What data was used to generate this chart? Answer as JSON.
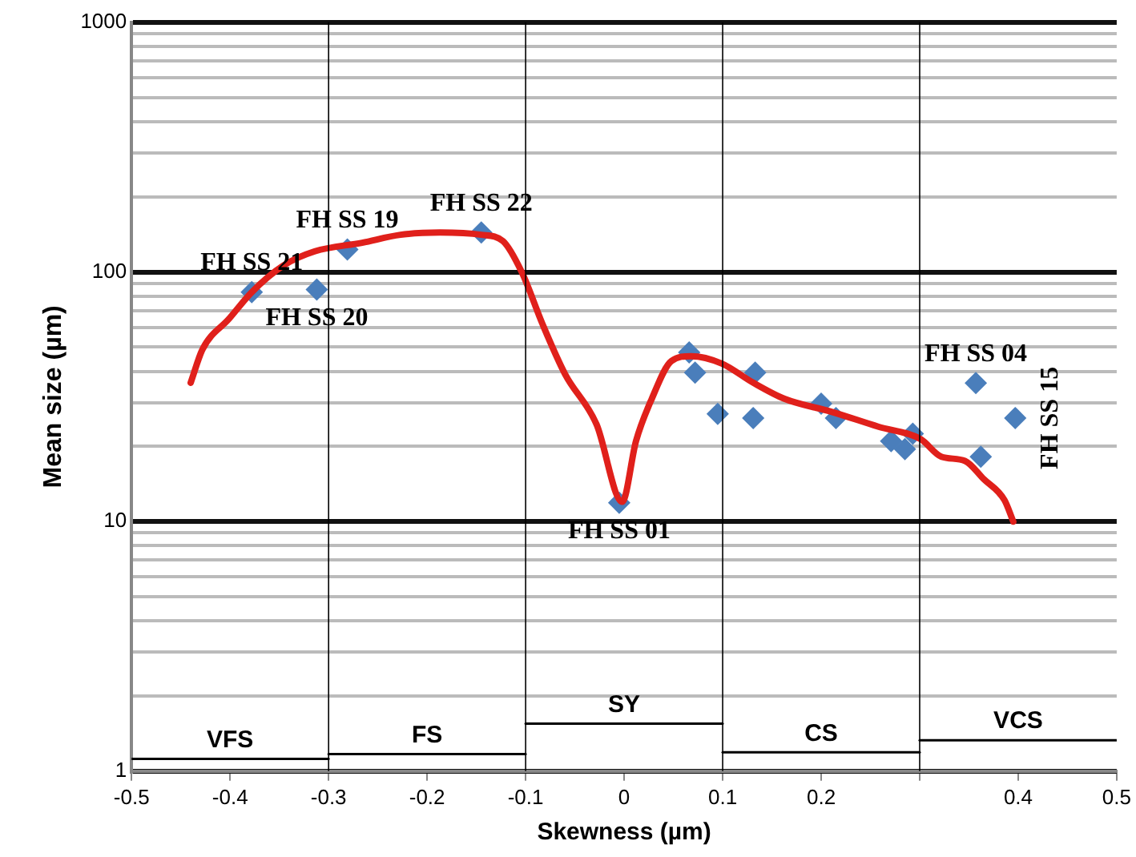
{
  "chart_data": {
    "type": "scatter",
    "xlabel": "Skewness (µm)",
    "ylabel": "Mean size (µm)",
    "log": "y",
    "grid": "y",
    "legend": false,
    "xlim": [
      -0.5,
      0.5
    ],
    "xticks": [
      -0.5,
      -0.4,
      -0.3,
      -0.2,
      -0.1,
      0,
      0.1,
      0.2,
      {
        "value": 0.3,
        "label": null
      },
      0.4,
      0.5
    ],
    "ylim": [
      1,
      1000
    ],
    "yticks": [
      1,
      {
        "value": 2,
        "label": null
      },
      {
        "value": 3,
        "label": null
      },
      {
        "value": 4,
        "label": null
      },
      {
        "value": 5,
        "label": null
      },
      {
        "value": 6,
        "label": null
      },
      {
        "value": 7,
        "label": null
      },
      {
        "value": 8,
        "label": null
      },
      {
        "value": 9,
        "label": null
      },
      10,
      {
        "value": 20,
        "label": null
      },
      {
        "value": 30,
        "label": null
      },
      {
        "value": 40,
        "label": null
      },
      {
        "value": 50,
        "label": null
      },
      {
        "value": 60,
        "label": null
      },
      {
        "value": 70,
        "label": null
      },
      {
        "value": 80,
        "label": null
      },
      {
        "value": 90,
        "label": null
      },
      100,
      {
        "value": 200,
        "label": null
      },
      {
        "value": 300,
        "label": null
      },
      {
        "value": 400,
        "label": null
      },
      {
        "value": 500,
        "label": null
      },
      {
        "value": 600,
        "label": null
      },
      {
        "value": 700,
        "label": null
      },
      {
        "value": 800,
        "label": null
      },
      {
        "value": 900,
        "label": null
      },
      1000
    ],
    "series": [
      {
        "type": "line",
        "color": "#e0201b",
        "marker": "none",
        "x": [
          -0.44,
          -0.428,
          -0.401,
          -0.378,
          -0.346,
          -0.314,
          -0.266,
          -0.227,
          -0.187,
          -0.145,
          -0.123,
          -0.104,
          -0.083,
          -0.06,
          -0.028,
          -0.002,
          0.012,
          0.028,
          0.048,
          0.068,
          0.099,
          0.131,
          0.163,
          0.211,
          0.258,
          0.301,
          0.322,
          0.346,
          0.365,
          0.386,
          0.395
        ],
        "values": [
          36,
          49,
          65,
          83,
          106,
          121,
          131,
          141,
          144,
          141,
          133,
          100,
          62,
          39,
          24.5,
          12,
          21,
          31,
          44,
          46,
          43,
          36,
          31,
          27.5,
          24,
          21.4,
          18.2,
          17.5,
          14.8,
          12.2,
          10
        ]
      },
      {
        "color": "#4a7ebb",
        "marker": "diamond",
        "x": [
          -0.378,
          -0.312,
          -0.281,
          -0.145,
          -0.005,
          0.066,
          0.072,
          0.095,
          0.133,
          0.131,
          0.2,
          0.215,
          0.271,
          0.285,
          0.293,
          0.357,
          0.362,
          0.397
        ],
        "values": [
          83,
          85,
          123,
          144,
          11.9,
          47.6,
          39.5,
          27,
          39.5,
          26,
          29.7,
          26,
          21,
          19.5,
          22.5,
          35.9,
          18.2,
          26
        ]
      },
      {
        "type": "line",
        "name": "VFS",
        "color": "#000000",
        "marker": "none",
        "x": [
          -0.5,
          -0.3
        ],
        "values": [
          1.12,
          1.12
        ]
      },
      {
        "type": "line",
        "name": "FS",
        "color": "#000000",
        "marker": "none",
        "x": [
          -0.3,
          -0.1
        ],
        "values": [
          1.17,
          1.17
        ]
      },
      {
        "type": "line",
        "name": "SY",
        "color": "#000000",
        "marker": "none",
        "x": [
          -0.1,
          0.1
        ],
        "values": [
          1.55,
          1.55
        ]
      },
      {
        "type": "line",
        "name": "CS",
        "color": "#000000",
        "marker": "none",
        "x": [
          0.1,
          0.3
        ],
        "values": [
          1.19,
          1.19
        ]
      },
      {
        "type": "line",
        "name": "VCS",
        "color": "#000000",
        "marker": "none",
        "x": [
          0.3,
          0.5
        ],
        "values": [
          1.33,
          1.33
        ]
      }
    ],
    "ref_lines": [
      {
        "axis": "x",
        "value": -0.3
      },
      {
        "axis": "x",
        "value": -0.1
      },
      {
        "axis": "x",
        "value": 0.1
      },
      {
        "axis": "x",
        "value": 0.3
      }
    ],
    "annotations": [
      {
        "text": "FH SS 21",
        "x": -0.378,
        "y": 83
      },
      {
        "text": "FH SS 19",
        "x": -0.281,
        "y": 123
      },
      {
        "text": "FH SS 22",
        "x": -0.145,
        "y": 144
      },
      {
        "text": "FH SS 20",
        "x": -0.312,
        "y": 85
      },
      {
        "text": "FH SS 01",
        "x": -0.005,
        "y": 11.9
      },
      {
        "text": "FH SS 04",
        "x": 0.357,
        "y": 35.9
      },
      {
        "text": "FH SS 15",
        "x": 0.397,
        "y": 26
      }
    ]
  }
}
